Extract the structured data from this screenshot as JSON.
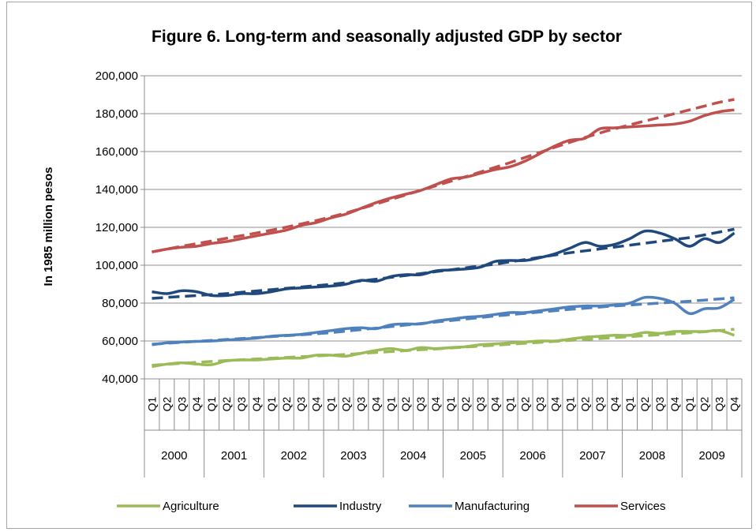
{
  "chart_data": {
    "type": "line",
    "title": "Figure 6. Long-term and seasonally adjusted GDP by sector",
    "ylabel": "In 1985 million pesos",
    "ylim": [
      40000,
      200000
    ],
    "yticks": [
      "40,000",
      "60,000",
      "80,000",
      "100,000",
      "120,000",
      "140,000",
      "160,000",
      "180,000",
      "200,000"
    ],
    "ytick_values": [
      40000,
      60000,
      80000,
      100000,
      120000,
      140000,
      160000,
      180000,
      200000
    ],
    "years": [
      "2000",
      "2001",
      "2002",
      "2003",
      "2004",
      "2005",
      "2006",
      "2007",
      "2008",
      "2009"
    ],
    "quarters": [
      "Q1",
      "Q2",
      "Q3",
      "Q4"
    ],
    "grid": true,
    "legend_position": "bottom",
    "series": [
      {
        "name": "Agriculture",
        "color": "#9bbb59",
        "values": [
          46500,
          47800,
          48500,
          47800,
          47500,
          49500,
          50000,
          50000,
          50500,
          51000,
          51000,
          52500,
          52500,
          52000,
          53500,
          55000,
          56000,
          55000,
          56500,
          56000,
          56500,
          57000,
          58000,
          58500,
          59000,
          59500,
          60000,
          60000,
          61000,
          62000,
          62500,
          63000,
          63000,
          64500,
          64000,
          65000,
          65000,
          65000,
          65500,
          63000
        ],
        "trend": [
          47200,
          47700,
          48200,
          48700,
          49200,
          49700,
          50100,
          50500,
          50900,
          51300,
          51700,
          52100,
          52500,
          52900,
          53400,
          53900,
          54400,
          54900,
          55400,
          55800,
          56300,
          56800,
          57300,
          57800,
          58300,
          58800,
          59300,
          59800,
          60300,
          60800,
          61300,
          61800,
          62300,
          62800,
          63300,
          63800,
          64300,
          64900,
          65500,
          66200
        ]
      },
      {
        "name": "Industry",
        "color": "#1f497d",
        "values": [
          86000,
          85000,
          86500,
          86000,
          84000,
          84000,
          85000,
          85000,
          86000,
          87500,
          88000,
          88500,
          89000,
          90000,
          92000,
          91500,
          94000,
          95000,
          95000,
          97000,
          97500,
          98000,
          99000,
          102000,
          102500,
          102500,
          104000,
          106000,
          109000,
          112000,
          110000,
          111000,
          114000,
          118000,
          117000,
          114000,
          110000,
          114000,
          112000,
          117000
        ],
        "trend": [
          82500,
          83000,
          83500,
          84000,
          84500,
          85000,
          85700,
          86400,
          87100,
          87800,
          88500,
          89200,
          89900,
          90800,
          91700,
          92600,
          93600,
          94600,
          95600,
          96600,
          97600,
          98600,
          99600,
          100600,
          101800,
          103000,
          104200,
          105400,
          106600,
          107600,
          108600,
          109600,
          110600,
          111600,
          112600,
          113600,
          114600,
          116000,
          117500,
          119000
        ]
      },
      {
        "name": "Manufacturing",
        "color": "#4f81bd",
        "values": [
          58000,
          59000,
          59500,
          59800,
          60000,
          60500,
          61000,
          61500,
          62500,
          63000,
          63500,
          64500,
          65500,
          66500,
          67000,
          66500,
          68500,
          69000,
          69000,
          70500,
          71500,
          72500,
          73000,
          74000,
          75000,
          75000,
          76000,
          77000,
          78000,
          78500,
          78500,
          79000,
          80000,
          83000,
          82500,
          80000,
          74500,
          77000,
          77500,
          82000
        ],
        "trend": [
          58300,
          58800,
          59300,
          59800,
          60300,
          60800,
          61300,
          61800,
          62300,
          62800,
          63300,
          63800,
          64400,
          65200,
          66000,
          66800,
          67600,
          68400,
          69200,
          70000,
          70800,
          71600,
          72400,
          73200,
          73900,
          74600,
          75300,
          76000,
          76700,
          77300,
          77900,
          78500,
          79000,
          79500,
          80000,
          80500,
          81000,
          81600,
          82200,
          82800
        ]
      },
      {
        "name": "Services",
        "color": "#c0504d",
        "values": [
          107000,
          108500,
          109500,
          110000,
          111500,
          112500,
          114000,
          115500,
          117000,
          118500,
          121000,
          122500,
          125000,
          127000,
          130000,
          133000,
          135500,
          137500,
          139500,
          142500,
          145500,
          146500,
          148500,
          150500,
          152000,
          155000,
          159000,
          163000,
          166000,
          167000,
          172000,
          172500,
          173000,
          173500,
          174000,
          174500,
          176000,
          179000,
          181000,
          182000
        ],
        "trend": [
          107000,
          108500,
          110000,
          111400,
          112800,
          114200,
          115600,
          117000,
          118500,
          120100,
          121800,
          123600,
          125500,
          127600,
          129900,
          132300,
          134700,
          137100,
          139500,
          141900,
          144300,
          146700,
          149200,
          151700,
          154200,
          156900,
          159600,
          162300,
          164900,
          167400,
          169800,
          172000,
          174100,
          176100,
          178000,
          180000,
          182000,
          184000,
          186000,
          187500
        ]
      }
    ]
  }
}
